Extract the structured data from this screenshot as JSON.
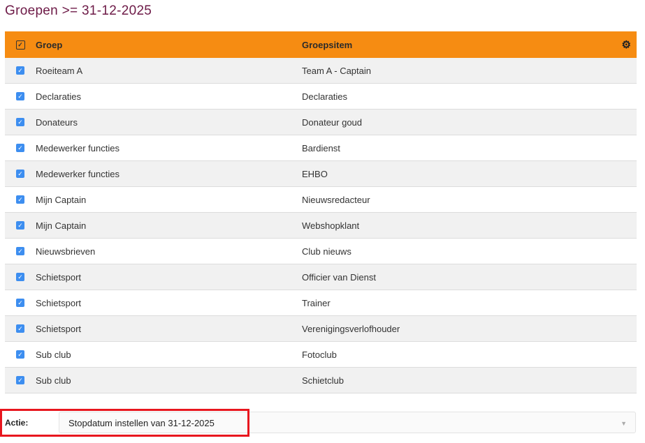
{
  "title": "Groepen >= 31-12-2025",
  "table": {
    "headers": {
      "groep": "Groep",
      "groepsitem": "Groepsitem"
    },
    "rows": [
      {
        "groep": "Roeiteam A",
        "item": "Team A - Captain",
        "checked": true
      },
      {
        "groep": "Declaraties",
        "item": "Declaraties",
        "checked": true
      },
      {
        "groep": "Donateurs",
        "item": "Donateur goud",
        "checked": true
      },
      {
        "groep": "Medewerker functies",
        "item": "Bardienst",
        "checked": true
      },
      {
        "groep": "Medewerker functies",
        "item": "EHBO",
        "checked": true
      },
      {
        "groep": "Mijn Captain",
        "item": "Nieuwsredacteur",
        "checked": true
      },
      {
        "groep": "Mijn Captain",
        "item": "Webshopklant",
        "checked": true
      },
      {
        "groep": "Nieuwsbrieven",
        "item": "Club nieuws",
        "checked": true
      },
      {
        "groep": "Schietsport",
        "item": "Officier van Dienst",
        "checked": true
      },
      {
        "groep": "Schietsport",
        "item": "Trainer",
        "checked": true
      },
      {
        "groep": "Schietsport",
        "item": "Verenigingsverlofhouder",
        "checked": true
      },
      {
        "groep": "Sub club",
        "item": "Fotoclub",
        "checked": true
      },
      {
        "groep": "Sub club",
        "item": "Schietclub",
        "checked": true
      }
    ]
  },
  "action": {
    "label": "Actie:",
    "selected": "Stopdatum instellen van 31-12-2025"
  },
  "colors": {
    "header": "#f68c12",
    "title": "#6d1a47",
    "checkbox": "#3d8ef0",
    "highlight": "#e8161e"
  }
}
